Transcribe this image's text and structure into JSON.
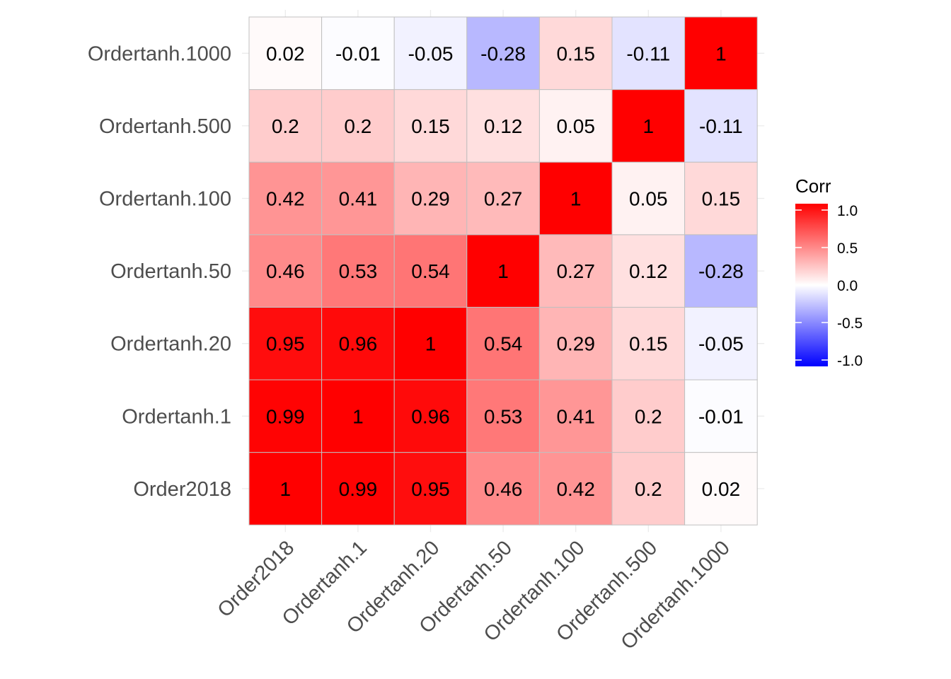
{
  "chart_data": {
    "type": "heatmap",
    "title": "",
    "xlabel": "",
    "ylabel": "",
    "x_categories": [
      "Order2018",
      "Ordertanh.1",
      "Ordertanh.20",
      "Ordertanh.50",
      "Ordertanh.100",
      "Ordertanh.500",
      "Ordertanh.1000"
    ],
    "y_categories_bottom_to_top": [
      "Order2018",
      "Ordertanh.1",
      "Ordertanh.20",
      "Ordertanh.50",
      "Ordertanh.100",
      "Ordertanh.500",
      "Ordertanh.1000"
    ],
    "matrix": [
      [
        1,
        0.99,
        0.95,
        0.46,
        0.42,
        0.2,
        0.02
      ],
      [
        0.99,
        1,
        0.96,
        0.53,
        0.41,
        0.2,
        -0.01
      ],
      [
        0.95,
        0.96,
        1,
        0.54,
        0.29,
        0.15,
        -0.05
      ],
      [
        0.46,
        0.53,
        0.54,
        1,
        0.27,
        0.12,
        -0.28
      ],
      [
        0.42,
        0.41,
        0.29,
        0.27,
        1,
        0.05,
        0.15
      ],
      [
        0.2,
        0.2,
        0.15,
        0.12,
        0.05,
        1,
        -0.11
      ],
      [
        0.02,
        -0.01,
        -0.05,
        -0.28,
        0.15,
        -0.11,
        1
      ]
    ],
    "value_labels": [
      [
        "1",
        "0.99",
        "0.95",
        "0.46",
        "0.42",
        "0.2",
        "0.02"
      ],
      [
        "0.99",
        "1",
        "0.96",
        "0.53",
        "0.41",
        "0.2",
        "-0.01"
      ],
      [
        "0.95",
        "0.96",
        "1",
        "0.54",
        "0.29",
        "0.15",
        "-0.05"
      ],
      [
        "0.46",
        "0.53",
        "0.54",
        "1",
        "0.27",
        "0.12",
        "-0.28"
      ],
      [
        "0.42",
        "0.41",
        "0.29",
        "0.27",
        "1",
        "0.05",
        "0.15"
      ],
      [
        "0.2",
        "0.2",
        "0.15",
        "0.12",
        "0.05",
        "1",
        "-0.11"
      ],
      [
        "0.02",
        "-0.01",
        "-0.05",
        "-0.28",
        "0.15",
        "-0.11",
        "1"
      ]
    ],
    "x_tick_rotation": "45 degrees",
    "grid": true,
    "legend": {
      "title": "Corr",
      "placement": "right",
      "range": [
        -1,
        1
      ],
      "ticks": [
        1.0,
        0.5,
        0.0,
        -0.5,
        -1.0
      ],
      "tick_labels": [
        "1.0",
        "0.5",
        "0.0",
        "-0.5",
        "-1.0"
      ]
    },
    "colors": {
      "low": "#0000ff",
      "mid": "#ffffff",
      "high": "#ff0000",
      "grid": "#ebebeb",
      "cell_border": "#c0c0c0",
      "tick_text": "#4d4d4d"
    }
  }
}
